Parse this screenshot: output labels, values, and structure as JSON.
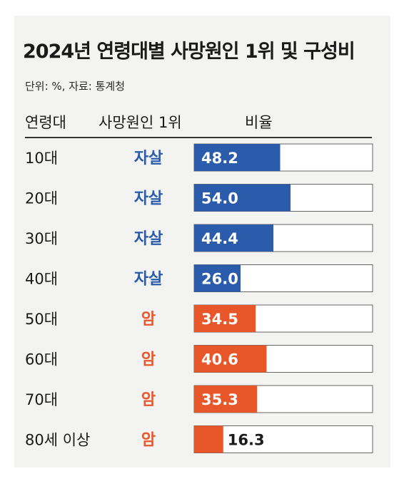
{
  "title": "2024년 연령대별 사망원인 1위 및 구성비",
  "source": "단위: %, 자료: 통계청",
  "header": {
    "age": "연령대",
    "cause": "사망원인 1위",
    "ratio": "비율"
  },
  "colors": {
    "suicide": "#2a5cab",
    "cancer": "#e8572a",
    "bar_border": "#666666",
    "bar_bg": "#ffffff"
  },
  "chart_data": {
    "type": "bar",
    "orientation": "horizontal",
    "unit": "%",
    "xlim": [
      0,
      100
    ],
    "categories": [
      "10대",
      "20대",
      "30대",
      "40대",
      "50대",
      "60대",
      "70대",
      "80세 이상"
    ],
    "causes": [
      "자살",
      "자살",
      "자살",
      "자살",
      "암",
      "암",
      "암",
      "암"
    ],
    "values": [
      48.2,
      54.0,
      44.4,
      26.0,
      34.5,
      40.6,
      35.3,
      16.3
    ],
    "labels": [
      "48.2",
      "54.0",
      "44.4",
      "26.0",
      "34.5",
      "40.6",
      "35.3",
      "16.3"
    ]
  }
}
